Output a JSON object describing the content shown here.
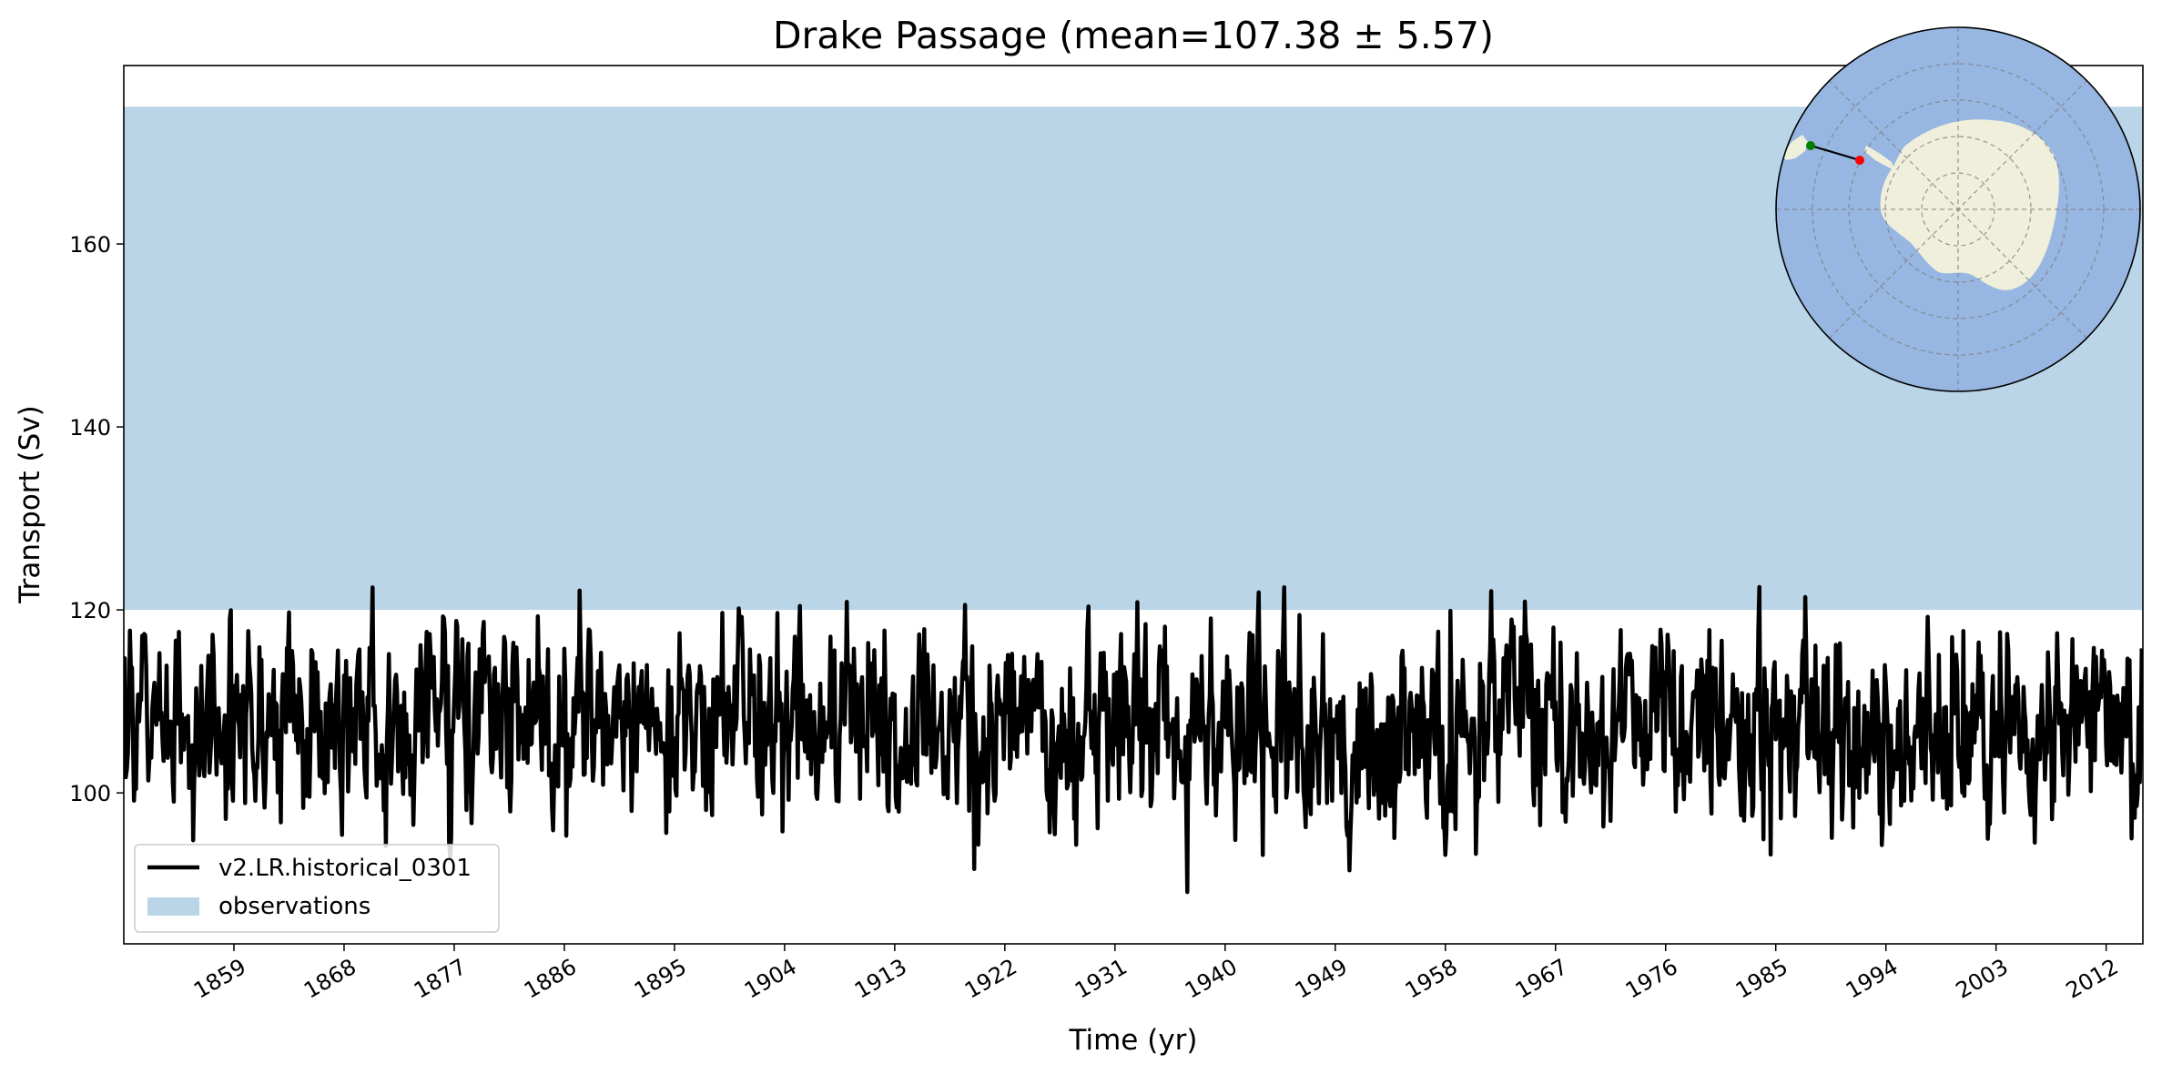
{
  "chart_data": {
    "type": "line",
    "title": "Drake Passage (mean=107.38 ± 5.57)",
    "xlabel": "Time (yr)",
    "ylabel": "Transport (Sv)",
    "xlim": [
      1850,
      2015
    ],
    "ylim": [
      83.5,
      179.5
    ],
    "x_ticks": [
      1859,
      1868,
      1877,
      1886,
      1895,
      1904,
      1913,
      1922,
      1931,
      1940,
      1949,
      1958,
      1967,
      1976,
      1985,
      1994,
      2003,
      2012
    ],
    "y_ticks": [
      100,
      120,
      140,
      160
    ],
    "grid": false,
    "legend_position": "lower-left",
    "observations": {
      "name": "observations",
      "y_range": [
        120,
        175
      ],
      "color": "#b9d5e7"
    },
    "series": [
      {
        "name": "v2.LR.historical_0301",
        "color": "#000000",
        "x_start": 1850.0,
        "x_step": 0.08333,
        "mean": 107.38,
        "std": 5.57,
        "min": 88.0,
        "max": 122.5,
        "n_points": 1980
      }
    ],
    "inset_map": {
      "type": "south-polar-projection",
      "ocean_color": "#97b6e1",
      "land_color": "#efefdb",
      "section_start_color": "#008000",
      "section_end_color": "#ff0000"
    }
  }
}
